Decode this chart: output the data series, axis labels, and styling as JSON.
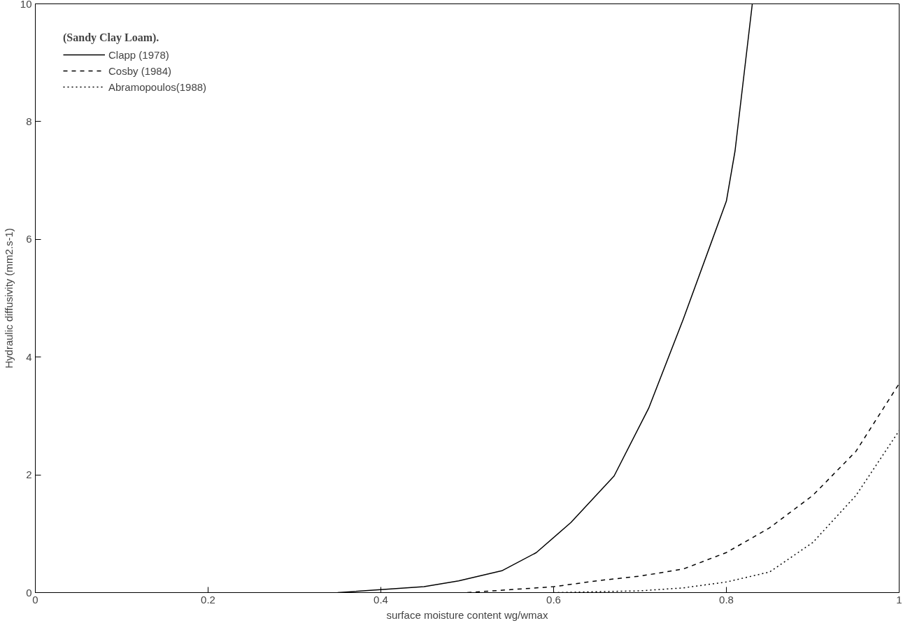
{
  "chart_data": {
    "type": "line",
    "xlabel": "surface moisture content wg/wmax",
    "ylabel": "Hydraulic diffusivity (mm2.s-1)",
    "legend_title": "(Sandy Clay Loam).",
    "legend": "top left",
    "grid": false,
    "xlim": [
      0,
      1
    ],
    "ylim": [
      0,
      10
    ],
    "xticks": [
      0,
      0.2,
      0.4,
      0.6,
      0.8,
      1
    ],
    "yticks": [
      0,
      2,
      4,
      6,
      8,
      10
    ],
    "series": [
      {
        "name": "Clapp (1978)",
        "color": "#000000",
        "line_style": "solid",
        "x": [
          0.35,
          0.4,
          0.45,
          0.49,
          0.54,
          0.58,
          0.62,
          0.67,
          0.71,
          0.75,
          0.8,
          0.81,
          0.83
        ],
        "values": [
          0,
          0.05,
          0.1,
          0.2,
          0.37,
          0.68,
          1.19,
          1.98,
          3.13,
          4.64,
          6.65,
          7.5,
          10
        ]
      },
      {
        "name": "Cosby (1984)",
        "color": "#000000",
        "line_style": "dashed",
        "x": [
          0.5,
          0.55,
          0.6,
          0.65,
          0.7,
          0.75,
          0.8,
          0.85,
          0.9,
          0.95,
          1.0
        ],
        "values": [
          0,
          0.05,
          0.1,
          0.2,
          0.28,
          0.4,
          0.68,
          1.1,
          1.65,
          2.4,
          3.55
        ]
      },
      {
        "name": "Abramopoulos(1988)",
        "color": "#000000",
        "line_style": "dotted",
        "x": [
          0.6,
          0.7,
          0.75,
          0.8,
          0.85,
          0.9,
          0.95,
          1.0
        ],
        "values": [
          0,
          0.03,
          0.08,
          0.18,
          0.35,
          0.85,
          1.65,
          2.75
        ]
      }
    ]
  }
}
